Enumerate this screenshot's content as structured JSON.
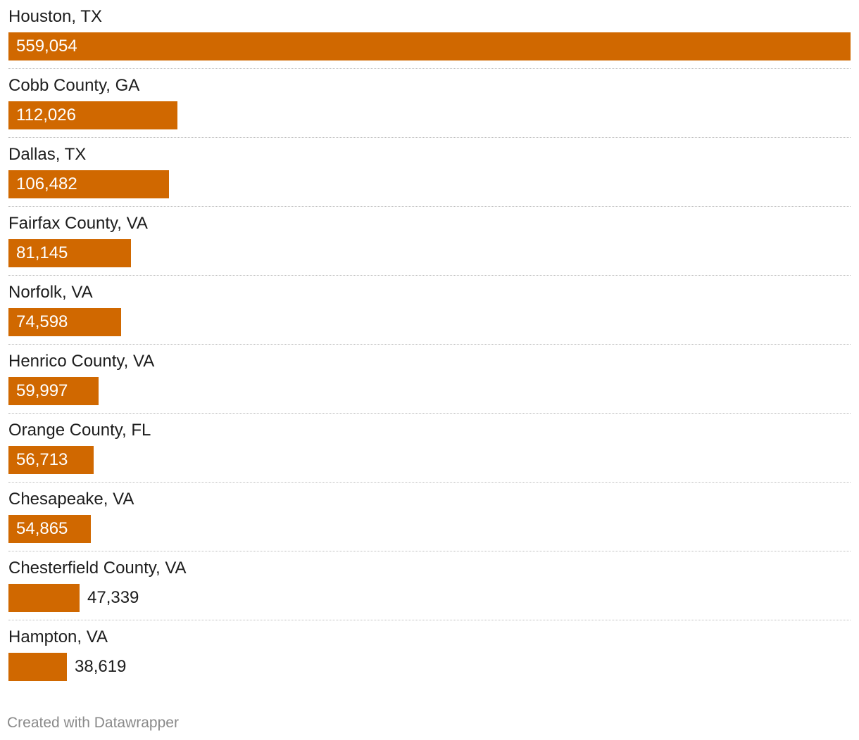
{
  "chart_data": {
    "type": "bar",
    "orientation": "horizontal",
    "categories": [
      "Houston, TX",
      "Cobb County, GA",
      "Dallas, TX",
      "Fairfax County, VA",
      "Norfolk, VA",
      "Henrico County, VA",
      "Orange County, FL",
      "Chesapeake, VA",
      "Chesterfield County, VA",
      "Hampton, VA"
    ],
    "values": [
      559054,
      112026,
      106482,
      81145,
      74598,
      59997,
      56713,
      54865,
      47339,
      38619
    ],
    "value_labels": [
      "559,054",
      "112,026",
      "106,482",
      "81,145",
      "74,598",
      "59,997",
      "56,713",
      "54,865",
      "47,339",
      "38,619"
    ],
    "xlim": [
      0,
      559054
    ],
    "grid": false,
    "legend": "none",
    "bar_color": "#d06800"
  },
  "footer": {
    "credit": "Created with Datawrapper"
  }
}
